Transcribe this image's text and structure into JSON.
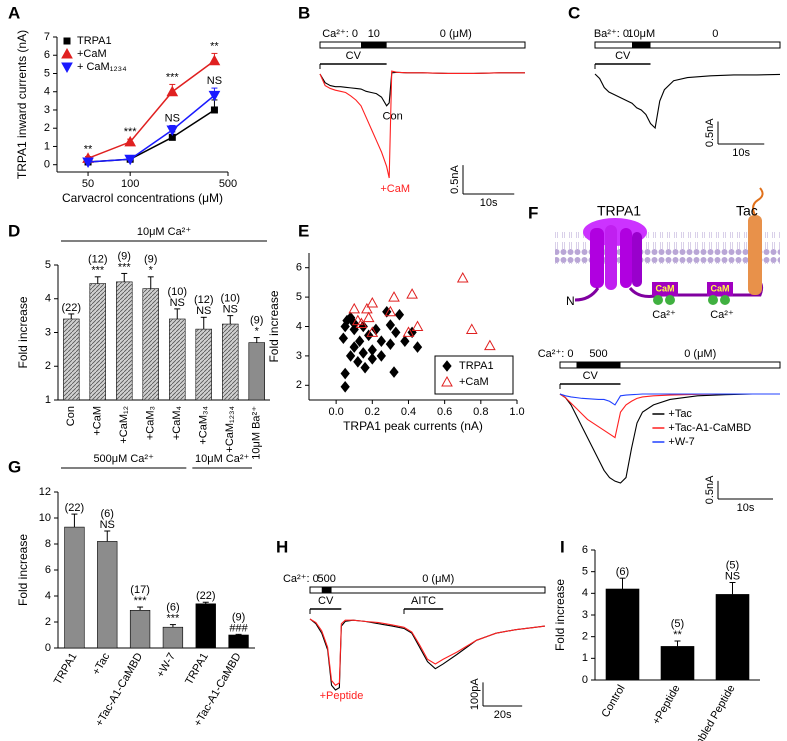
{
  "chart_data": [
    {
      "type": "line",
      "panel_label": "A",
      "xlabel": "Carvacrol concentrations (μM)",
      "ylabel": "TRPA1 inward currents (nA)",
      "x": [
        50,
        100,
        200,
        400
      ],
      "xscale": "log",
      "xlim": [
        30,
        500
      ],
      "xticks": [
        50,
        100,
        500
      ],
      "ylim": [
        -0.4,
        7
      ],
      "yticks": [
        0,
        1,
        2,
        3,
        4,
        5,
        6,
        7
      ],
      "legend": "upper left",
      "series": [
        {
          "name": "TRPA1",
          "color": "#000000",
          "marker": "square",
          "values": [
            0.15,
            0.3,
            1.5,
            3.0
          ],
          "errors": [
            0.08,
            0.08,
            0.3,
            0.55
          ]
        },
        {
          "name": "+CaM",
          "color": "#e02020",
          "marker": "triangle",
          "values": [
            0.35,
            1.25,
            4.0,
            5.7
          ],
          "errors": [
            0.1,
            0.15,
            0.4,
            0.4
          ],
          "significance": [
            "**",
            "***",
            "***",
            "**"
          ]
        },
        {
          "name": "+ CaM₁₂₃₄",
          "color": "#1a1aff",
          "marker": "triangle-down",
          "values": [
            0.15,
            0.3,
            1.9,
            3.8
          ],
          "errors": [
            0.06,
            0.08,
            0.25,
            0.4
          ],
          "significance": [
            null,
            null,
            "NS",
            "NS"
          ]
        }
      ]
    },
    {
      "type": "trace",
      "panel_label": "B",
      "x": [
        0,
        1,
        2,
        3,
        4,
        5,
        6,
        7,
        8,
        9,
        10,
        11,
        12,
        13,
        13.5,
        14,
        15,
        17,
        20,
        25,
        30,
        35,
        40
      ],
      "stimulus": [
        {
          "label": "Ca²⁺: 0"
        },
        {
          "label": "10",
          "start": 8,
          "end": 13
        },
        {
          "label": "0 (μM)"
        }
      ],
      "bars": [
        {
          "label": "CV",
          "start": 0,
          "end": 13
        }
      ],
      "legend": "inline",
      "scale": {
        "y": {
          "value": 0.5,
          "label": "0.5nA"
        },
        "x": {
          "value": 10,
          "label": "10s"
        }
      },
      "series": [
        {
          "name": "Con",
          "color": "#000000",
          "values": [
            0,
            -0.15,
            -0.2,
            -0.22,
            -0.22,
            -0.23,
            -0.24,
            -0.25,
            -0.26,
            -0.3,
            -0.32,
            -0.34,
            -0.4,
            -0.55,
            -0.5,
            0.02,
            0.03,
            0.02,
            0.02,
            0.01,
            0.01,
            0.02,
            0.02
          ]
        },
        {
          "name": "+CaM",
          "color": "#ff2020",
          "values": [
            0,
            -0.2,
            -0.25,
            -0.28,
            -0.3,
            -0.32,
            -0.38,
            -0.45,
            -0.55,
            -0.75,
            -0.95,
            -1.15,
            -1.35,
            -1.6,
            -1.8,
            0.05,
            0.03,
            0.02,
            0.02,
            0.01,
            0.01,
            0.02,
            0.02
          ]
        }
      ]
    },
    {
      "type": "trace",
      "panel_label": "C",
      "x": [
        0,
        1,
        2,
        3,
        4,
        5,
        6,
        7,
        8,
        9,
        10,
        11,
        12,
        13,
        13.5,
        14,
        15,
        17,
        20,
        25,
        30,
        35,
        40
      ],
      "stimulus": [
        {
          "label": "Ba²⁺: 0"
        },
        {
          "label": "10μM",
          "start": 8,
          "end": 12
        },
        {
          "label": "0"
        }
      ],
      "bars": [
        {
          "label": "CV",
          "start": 0,
          "end": 12
        }
      ],
      "legend": "inline",
      "scale": {
        "y": {
          "value": 0.5,
          "label": "0.5nA"
        },
        "x": {
          "value": 10,
          "label": "10s"
        }
      },
      "series": [
        {
          "color": "#000000",
          "values": [
            0,
            -0.1,
            -0.3,
            -0.4,
            -0.45,
            -0.5,
            -0.55,
            -0.6,
            -0.65,
            -0.75,
            -0.8,
            -0.9,
            -1.1,
            -1.2,
            -0.9,
            -0.6,
            -0.35,
            -0.15,
            -0.08,
            -0.04,
            -0.02,
            -0.02,
            -0.01
          ]
        }
      ]
    },
    {
      "type": "bar",
      "panel_label": "D",
      "ylabel": "Fold increase",
      "categories": [
        "Con",
        "+CaM",
        "+CaM₁₂",
        "+CaM₃",
        "+CaM₄",
        "+CaM₃₄",
        "+CaM₁₂₃₄",
        "10μM Ba²⁺"
      ],
      "values": [
        3.4,
        4.45,
        4.5,
        4.3,
        3.4,
        3.1,
        3.25,
        2.7
      ],
      "errors": [
        0.15,
        0.2,
        0.25,
        0.35,
        0.3,
        0.35,
        0.25,
        0.15
      ],
      "n_labels": [
        "(22)",
        "(12)",
        "(9)",
        "(9)",
        "(10)",
        "(12)",
        "(10)",
        "(9)"
      ],
      "significance": [
        null,
        "***",
        "***",
        "*",
        "NS",
        "NS",
        "NS",
        "*"
      ],
      "colors": [
        "#d0d0d0",
        "#d0d0d0",
        "#d0d0d0",
        "#d0d0d0",
        "#d0d0d0",
        "#d0d0d0",
        "#d0d0d0",
        "#8c8c8c"
      ],
      "hatch": [
        true,
        true,
        true,
        true,
        true,
        true,
        true,
        false
      ],
      "label_rotation": -90,
      "ylim": [
        1,
        5
      ],
      "yticks": [
        1,
        2,
        3,
        4,
        5
      ],
      "groups": [
        {
          "label": "10μM Ca²⁺",
          "from": 0,
          "to": 7
        }
      ]
    },
    {
      "type": "scatter",
      "panel_label": "E",
      "xlabel": "TRPA1 peak currents (nA)",
      "ylabel": "Fold increase",
      "xlim": [
        -0.15,
        1.0
      ],
      "xticks": [
        {
          "value": 0,
          "label": "0.0"
        },
        0.2,
        0.4,
        0.6,
        0.8,
        {
          "value": 1,
          "label": "1.0"
        }
      ],
      "ylim": [
        1.5,
        6.5
      ],
      "yticks": [
        2,
        3,
        4,
        5,
        6
      ],
      "legend": "lower right",
      "series": [
        {
          "name": "TRPA1",
          "color": "#000000",
          "marker": "diamond",
          "x": [
            0.05,
            0.05,
            0.04,
            0.05,
            0.06,
            0.08,
            0.1,
            0.1,
            0.12,
            0.13,
            0.15,
            0.15,
            0.18,
            0.2,
            0.2,
            0.22,
            0.25,
            0.25,
            0.28,
            0.3,
            0.32,
            0.33,
            0.35,
            0.38,
            0.42,
            0.45,
            0.08,
            0.1,
            0.3,
            0.16
          ],
          "values": [
            1.95,
            2.4,
            3.6,
            4.0,
            4.2,
            4.3,
            3.9,
            3.3,
            2.8,
            3.5,
            3.1,
            4.0,
            3.7,
            3.2,
            2.9,
            3.9,
            3.5,
            3.0,
            4.5,
            3.4,
            2.45,
            3.8,
            4.4,
            3.5,
            3.8,
            3.3,
            3.0,
            4.1,
            4.05,
            2.6
          ]
        },
        {
          "name": "+CaM",
          "color": "#e02020",
          "marker": "triangle-open",
          "x": [
            0.1,
            0.12,
            0.14,
            0.17,
            0.18,
            0.2,
            0.2,
            0.3,
            0.32,
            0.4,
            0.42,
            0.45,
            0.7,
            0.75,
            0.85
          ],
          "values": [
            4.6,
            4.2,
            4.1,
            4.6,
            4.3,
            3.8,
            4.8,
            4.5,
            5.0,
            3.8,
            5.1,
            4.0,
            5.65,
            3.9,
            3.35
          ]
        }
      ]
    },
    {
      "type": "trace",
      "x": [
        0,
        1,
        2,
        3,
        4,
        5,
        6,
        7,
        8,
        9,
        10,
        11,
        12,
        13,
        14,
        15,
        17,
        20,
        25,
        30,
        35,
        40
      ],
      "stimulus": [
        {
          "label": "Ca²⁺: 0"
        },
        {
          "label": "500",
          "start": 3,
          "end": 11
        },
        {
          "label": "0 (μM)"
        }
      ],
      "bars": [
        {
          "label": "CV",
          "start": 0,
          "end": 11
        }
      ],
      "legend": "right",
      "scale": {
        "y": {
          "value": 0.5,
          "label": "0.5nA"
        },
        "x": {
          "value": 10,
          "label": "10s"
        }
      },
      "series": [
        {
          "name": "+Tac",
          "color": "#000000",
          "values": [
            0,
            -0.1,
            -0.3,
            -0.6,
            -0.9,
            -1.2,
            -1.5,
            -1.8,
            -2.1,
            -2.3,
            -2.4,
            -2.45,
            -2.3,
            -1.5,
            -0.8,
            -0.5,
            -0.3,
            -0.15,
            -0.05,
            -0.02,
            0,
            0
          ]
        },
        {
          "name": "+Tac-A1-CaMBD",
          "color": "#ff2020",
          "values": [
            0,
            -0.1,
            -0.25,
            -0.4,
            -0.55,
            -0.7,
            -0.8,
            -0.9,
            -1.0,
            -1.1,
            -1.2,
            -0.5,
            -0.3,
            -0.2,
            -0.12,
            -0.08,
            -0.05,
            -0.03,
            -0.01,
            0,
            0,
            0
          ]
        },
        {
          "name": "+W-7",
          "color": "#2040ff",
          "values": [
            0,
            -0.05,
            -0.08,
            -0.1,
            -0.12,
            -0.13,
            -0.14,
            -0.15,
            -0.15,
            -0.2,
            -0.3,
            -0.05,
            -0.03,
            -0.02,
            -0.01,
            0,
            0,
            0,
            0,
            0,
            0,
            0
          ]
        }
      ]
    },
    {
      "type": "bar",
      "panel_label": "G",
      "ylabel": "Fold increase",
      "categories": [
        "TRPA1",
        "+Tac",
        "+Tac-A1-CaMBD",
        "+W-7",
        "TRPA1",
        "+Tac-A1-CaMBD"
      ],
      "values": [
        9.3,
        8.2,
        2.9,
        1.6,
        3.4,
        1.0
      ],
      "errors": [
        1.0,
        0.8,
        0.25,
        0.2,
        0.12,
        0.05
      ],
      "n_labels": [
        "(22)",
        "(6)",
        "(17)",
        "(6)",
        "(22)",
        "(9)"
      ],
      "significance": [
        null,
        "NS",
        "***",
        "***",
        null,
        "###"
      ],
      "colors": [
        "#8c8c8c",
        "#8c8c8c",
        "#8c8c8c",
        "#8c8c8c",
        "#000000",
        "#000000"
      ],
      "label_rotation": -60,
      "ylim": [
        0,
        12
      ],
      "yticks": [
        0,
        2,
        4,
        6,
        8,
        10,
        12
      ],
      "groups": [
        {
          "label": "500μM Ca²⁺",
          "from": 0,
          "to": 3
        },
        {
          "label": "10μM Ca²⁺",
          "from": 4,
          "to": 5
        }
      ]
    },
    {
      "type": "trace",
      "panel_label": "H",
      "x": [
        0,
        3,
        6,
        9,
        11,
        13,
        15,
        16,
        18,
        22,
        28,
        35,
        42,
        48,
        52,
        56,
        60,
        64,
        68,
        75,
        85,
        95,
        105,
        115,
        120
      ],
      "stimulus": [
        {
          "label": "Ca²⁺: 0"
        },
        {
          "label": "500",
          "start": 6,
          "end": 11
        },
        {
          "label": "0 (μM)"
        }
      ],
      "bars": [
        {
          "label": "CV",
          "start": 0,
          "end": 16
        },
        {
          "label": "AITC",
          "start": 48,
          "end": 68
        }
      ],
      "legend": "inline",
      "scale": {
        "y": {
          "value": 100,
          "label": "100pA"
        },
        "x": {
          "value": 20,
          "label": "20s"
        }
      },
      "series": [
        {
          "color": "#000000",
          "values": [
            0,
            -20,
            -60,
            -130,
            -280,
            -300,
            -290,
            -30,
            -10,
            -5,
            -10,
            -20,
            -30,
            -40,
            -60,
            -120,
            -180,
            -210,
            -190,
            -150,
            -90,
            -60,
            -45,
            -35,
            -30
          ]
        },
        {
          "name": "+Peptide",
          "color": "#ff2020",
          "values": [
            0,
            -15,
            -50,
            -120,
            -260,
            -280,
            -270,
            -20,
            -5,
            -5,
            -10,
            -15,
            -25,
            -35,
            -55,
            -110,
            -170,
            -190,
            -170,
            -140,
            -90,
            -60,
            -45,
            -35,
            -30
          ]
        }
      ]
    },
    {
      "type": "bar",
      "panel_label": "I",
      "ylabel": "Fold increase",
      "categories": [
        "Control",
        "+Peptide",
        "+Scrambled Peptide"
      ],
      "values": [
        4.2,
        1.55,
        3.95
      ],
      "errors": [
        0.5,
        0.25,
        0.55
      ],
      "n_labels": [
        "(6)",
        "(5)",
        "(5)"
      ],
      "significance": [
        null,
        "**",
        "NS"
      ],
      "colors": [
        "#000000",
        "#000000",
        "#000000"
      ],
      "label_rotation": -60,
      "ylim": [
        0,
        6
      ],
      "yticks": [
        0,
        1,
        2,
        3,
        4,
        5,
        6
      ]
    }
  ],
  "diagram": {
    "panel_label": "F",
    "channel": "TRPA1",
    "receptor": "Tac",
    "terminus": "N",
    "calmodulin": [
      "CaM",
      "CaM"
    ],
    "calcium": [
      "Ca²⁺",
      "Ca²⁺"
    ]
  }
}
